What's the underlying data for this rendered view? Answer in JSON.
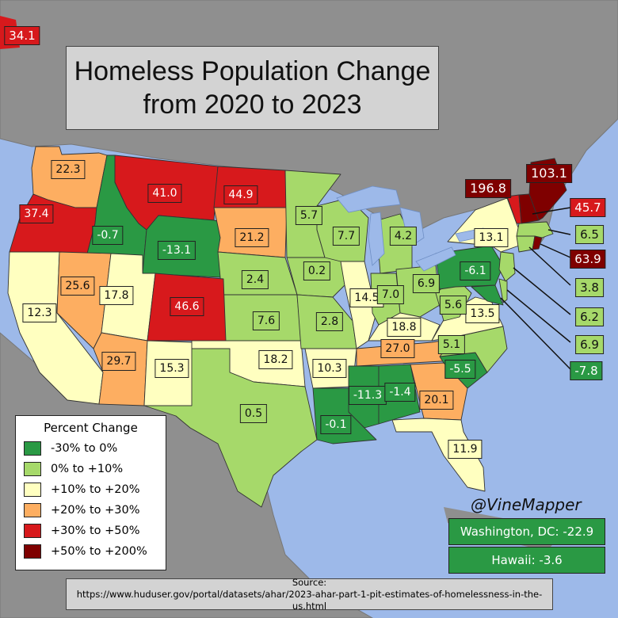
{
  "title": {
    "line1": "Homeless Population Change",
    "line2": "from 2020 to 2023"
  },
  "colors": {
    "water": "#9db9e9",
    "land_other": "#8f8f8f",
    "bin_neg": "#2a9944",
    "bin_0_10": "#a6d96a",
    "bin_10_20": "#ffffc0",
    "bin_20_30": "#fdae61",
    "bin_30_50": "#d7191c",
    "bin_50_200": "#7f0000"
  },
  "legend": {
    "title": "Percent Change",
    "items": [
      {
        "label": "-30% to 0%",
        "color_key": "bin_neg"
      },
      {
        "label": "0% to +10%",
        "color_key": "bin_0_10"
      },
      {
        "label": "+10% to +20%",
        "color_key": "bin_10_20"
      },
      {
        "label": "+20% to +30%",
        "color_key": "bin_20_30"
      },
      {
        "label": "+30% to +50%",
        "color_key": "bin_30_50"
      },
      {
        "label": "+50% to +200%",
        "color_key": "bin_50_200"
      }
    ]
  },
  "states": [
    {
      "id": "WA",
      "value": "22.3",
      "bin": "bin_20_30"
    },
    {
      "id": "OR",
      "value": "37.4",
      "bin": "bin_30_50"
    },
    {
      "id": "ID",
      "value": "-0.7",
      "bin": "bin_neg"
    },
    {
      "id": "MT",
      "value": "41.0",
      "bin": "bin_30_50"
    },
    {
      "id": "WY",
      "value": "-13.1",
      "bin": "bin_neg"
    },
    {
      "id": "ND",
      "value": "44.9",
      "bin": "bin_30_50"
    },
    {
      "id": "SD",
      "value": "21.2",
      "bin": "bin_20_30"
    },
    {
      "id": "NE",
      "value": "2.4",
      "bin": "bin_0_10"
    },
    {
      "id": "KS",
      "value": "7.6",
      "bin": "bin_0_10"
    },
    {
      "id": "OK",
      "value": "18.2",
      "bin": "bin_10_20"
    },
    {
      "id": "TX",
      "value": "0.5",
      "bin": "bin_0_10"
    },
    {
      "id": "CA",
      "value": "12.3",
      "bin": "bin_10_20"
    },
    {
      "id": "NV",
      "value": "25.6",
      "bin": "bin_20_30"
    },
    {
      "id": "UT",
      "value": "17.8",
      "bin": "bin_10_20"
    },
    {
      "id": "CO",
      "value": "46.6",
      "bin": "bin_30_50"
    },
    {
      "id": "AZ",
      "value": "29.7",
      "bin": "bin_20_30"
    },
    {
      "id": "NM",
      "value": "15.3",
      "bin": "bin_10_20"
    },
    {
      "id": "MN",
      "value": "5.7",
      "bin": "bin_0_10"
    },
    {
      "id": "IA",
      "value": "0.2",
      "bin": "bin_0_10"
    },
    {
      "id": "MO",
      "value": "2.8",
      "bin": "bin_0_10"
    },
    {
      "id": "AR",
      "value": "10.3",
      "bin": "bin_10_20"
    },
    {
      "id": "LA",
      "value": "-0.1",
      "bin": "bin_neg"
    },
    {
      "id": "WI",
      "value": "7.7",
      "bin": "bin_0_10"
    },
    {
      "id": "IL",
      "value": "14.5",
      "bin": "bin_10_20"
    },
    {
      "id": "MI",
      "value": "4.2",
      "bin": "bin_0_10"
    },
    {
      "id": "IN",
      "value": "7.0",
      "bin": "bin_0_10"
    },
    {
      "id": "OH",
      "value": "6.9",
      "bin": "bin_0_10"
    },
    {
      "id": "KY",
      "value": "18.8",
      "bin": "bin_10_20"
    },
    {
      "id": "TN",
      "value": "27.0",
      "bin": "bin_20_30"
    },
    {
      "id": "MS",
      "value": "-11.3",
      "bin": "bin_neg"
    },
    {
      "id": "AL",
      "value": "-1.4",
      "bin": "bin_neg"
    },
    {
      "id": "GA",
      "value": "20.1",
      "bin": "bin_20_30"
    },
    {
      "id": "FL",
      "value": "11.9",
      "bin": "bin_10_20"
    },
    {
      "id": "SC",
      "value": "-5.5",
      "bin": "bin_neg"
    },
    {
      "id": "NC",
      "value": "5.1",
      "bin": "bin_0_10"
    },
    {
      "id": "VA",
      "value": "13.5",
      "bin": "bin_10_20"
    },
    {
      "id": "WV",
      "value": "5.6",
      "bin": "bin_0_10"
    },
    {
      "id": "PA",
      "value": "-6.1",
      "bin": "bin_neg"
    },
    {
      "id": "NY",
      "value": "13.1",
      "bin": "bin_10_20"
    },
    {
      "id": "VT",
      "value": "196.8",
      "bin": "bin_50_200"
    },
    {
      "id": "ME",
      "value": "103.1",
      "bin": "bin_50_200"
    },
    {
      "id": "NH",
      "value": "45.7",
      "bin": "bin_30_50"
    },
    {
      "id": "MA",
      "value": "6.5",
      "bin": "bin_0_10"
    },
    {
      "id": "RI",
      "value": "63.9",
      "bin": "bin_50_200"
    },
    {
      "id": "CT",
      "value": "3.8",
      "bin": "bin_0_10"
    },
    {
      "id": "NJ",
      "value": "6.2",
      "bin": "bin_0_10"
    },
    {
      "id": "DE",
      "value": "6.9",
      "bin": "bin_0_10"
    },
    {
      "id": "MD",
      "value": "-7.8",
      "bin": "bin_neg"
    },
    {
      "id": "AK",
      "value": "34.1",
      "bin": "bin_30_50"
    }
  ],
  "credit": "@VineMapper",
  "dc": {
    "label": "Washington, DC: -22.9",
    "bin": "bin_neg"
  },
  "hawaii": {
    "label": "Hawaii: -3.6",
    "bin": "bin_neg"
  },
  "source": {
    "label": "Source:",
    "url": "https://www.huduser.gov/portal/datasets/ahar/2023-ahar-part-1-pit-estimates-of-homelessness-in-the-us.html"
  }
}
